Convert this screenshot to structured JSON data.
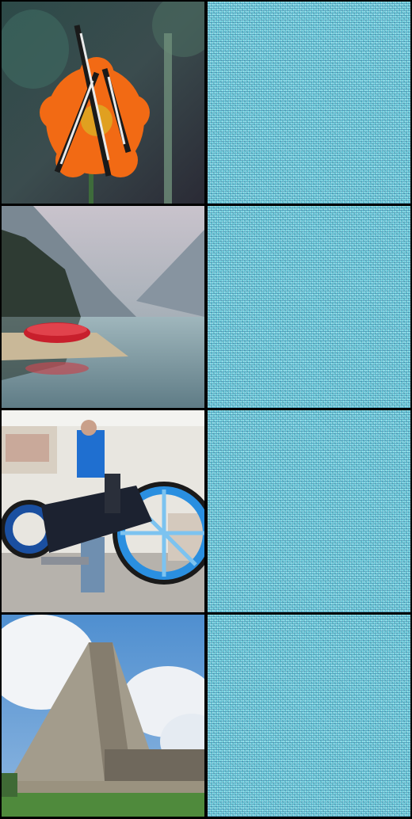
{
  "grid": {
    "rows": [
      {
        "original": {
          "subject": "butterfly-on-orange-flower"
        },
        "generated": {
          "subject": "cyan-noise-pattern"
        }
      },
      {
        "original": {
          "subject": "mountain-lake-with-red-boat"
        },
        "generated": {
          "subject": "cyan-noise-pattern"
        }
      },
      {
        "original": {
          "subject": "custom-blue-motorcycle-with-person"
        },
        "generated": {
          "subject": "cyan-noise-pattern"
        }
      },
      {
        "original": {
          "subject": "stone-pyramid-under-blue-sky"
        },
        "generated": {
          "subject": "cyan-noise-pattern"
        }
      }
    ]
  },
  "colors": {
    "background": "#000000",
    "noise_base": "#7fd6e2"
  }
}
